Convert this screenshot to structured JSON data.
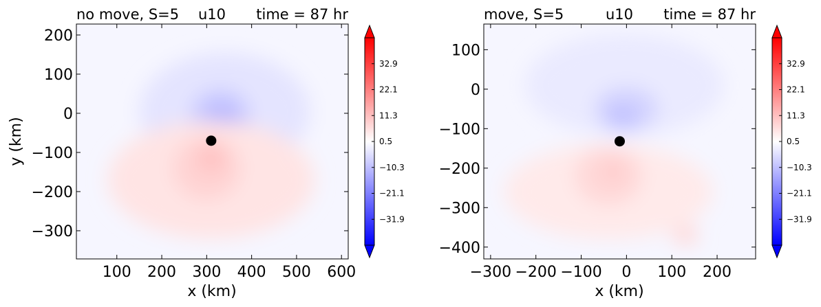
{
  "chart_data": [
    {
      "type": "heatmap",
      "variable": "u10",
      "title_left": "no move, S=5",
      "title_center": "u10",
      "title_right": "time = 87 hr",
      "title_left_color": "#ff0000",
      "title_center_color": "#000000",
      "title_right_color": "#0000ff",
      "xlabel": "x (km)",
      "ylabel": "y (km)",
      "xlim": [
        10,
        615
      ],
      "ylim": [
        -372,
        228
      ],
      "xticks": [
        100,
        200,
        300,
        400,
        500,
        600
      ],
      "yticks": [
        200,
        100,
        0,
        -100,
        -200,
        -300
      ],
      "storm_center": {
        "x": 310,
        "y": -70
      },
      "colorbar": {
        "range": [
          -42.7,
          43.7
        ],
        "ticks": [
          32.9,
          22.1,
          11.3,
          0.5,
          -10.3,
          -21.1,
          -31.9
        ],
        "tick_labels": [
          "32.9",
          "22.1",
          "11.3",
          "0.5",
          "−10.3",
          "−21.1",
          "−31.9"
        ],
        "extend": "both",
        "cmap": "bwr"
      },
      "field_features": [
        {
          "x": 340,
          "y": 5,
          "rx": 190,
          "ry": 150,
          "value": -4
        },
        {
          "x": 330,
          "y": -10,
          "rx": 65,
          "ry": 70,
          "value": -9
        },
        {
          "x": 335,
          "y": -20,
          "rx": 32,
          "ry": 32,
          "value": -13
        },
        {
          "x": 310,
          "y": -170,
          "rx": 230,
          "ry": 150,
          "value": 5
        },
        {
          "x": 300,
          "y": -140,
          "rx": 75,
          "ry": 80,
          "value": 8
        },
        {
          "x": 310,
          "y": -115,
          "rx": 30,
          "ry": 35,
          "value": 11
        }
      ]
    },
    {
      "type": "heatmap",
      "variable": "u10",
      "title_left": "move, S=5",
      "title_center": "u10",
      "title_right": "time = 87 hr",
      "title_left_color": "#ff0000",
      "title_center_color": "#000000",
      "title_right_color": "#0000ff",
      "xlabel": "x (km)",
      "ylabel": "",
      "xlim": [
        -315,
        285
      ],
      "ylim": [
        -430,
        165
      ],
      "xticks": [
        -300,
        -200,
        -100,
        0,
        100,
        200
      ],
      "yticks": [
        100,
        0,
        -100,
        -200,
        -300,
        -400
      ],
      "storm_center": {
        "x": -15,
        "y": -132
      },
      "colorbar": {
        "range": [
          -42.7,
          43.7
        ],
        "ticks": [
          32.9,
          22.1,
          11.3,
          0.5,
          -10.3,
          -21.1,
          -31.9
        ],
        "tick_labels": [
          "32.9",
          "22.1",
          "11.3",
          "0.5",
          "−10.3",
          "−21.1",
          "−31.9"
        ],
        "extend": "both",
        "cmap": "bwr"
      },
      "field_features": [
        {
          "x": -5,
          "y": 10,
          "rx": 220,
          "ry": 130,
          "value": -3
        },
        {
          "x": 0,
          "y": -50,
          "rx": 70,
          "ry": 55,
          "value": -7
        },
        {
          "x": -10,
          "y": -70,
          "rx": 35,
          "ry": 30,
          "value": -10
        },
        {
          "x": -40,
          "y": -260,
          "rx": 230,
          "ry": 120,
          "value": 4
        },
        {
          "x": -40,
          "y": -220,
          "rx": 75,
          "ry": 75,
          "value": 7
        },
        {
          "x": -30,
          "y": -210,
          "rx": 30,
          "ry": 30,
          "value": 9
        },
        {
          "x": 130,
          "y": -370,
          "rx": 28,
          "ry": 25,
          "value": 7
        }
      ]
    }
  ]
}
